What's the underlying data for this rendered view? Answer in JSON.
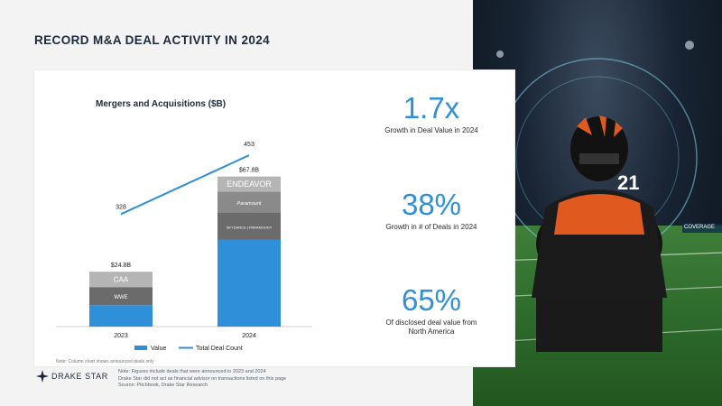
{
  "page": {
    "title": "RECORD M&A DEAL ACTIVITY IN 2024",
    "colors": {
      "accent": "#2f8fd8",
      "dark_bar": "#6b6b6b",
      "mid_bar": "#8a8a8a",
      "light_bar": "#b5b5b5",
      "title": "#1e2a3b"
    }
  },
  "chart_data": {
    "type": "bar",
    "title": "Mergers and Acquisitions ($B)",
    "categories": [
      "2023",
      "2024"
    ],
    "series": [
      {
        "name": "Value",
        "type": "bar",
        "values": [
          24.8,
          67.8
        ],
        "value_labels": [
          "$24.8B",
          "$67.8B"
        ]
      },
      {
        "name": "Total Deal Count",
        "type": "line",
        "values": [
          328,
          453
        ],
        "value_labels": [
          "328",
          "453"
        ]
      }
    ],
    "stack_labels": [
      [
        "CAA",
        "WWE"
      ],
      [
        "ENDEAVOR",
        "Paramount",
        "SKYDANCE | PARAMOUNT"
      ]
    ],
    "legend": [
      "Value",
      "Total Deal Count"
    ],
    "legend_position": "bottom",
    "ylim": [
      0,
      75
    ]
  },
  "stats": [
    {
      "value": "1.7x",
      "label": "Growth in Deal Value in 2024"
    },
    {
      "value": "38%",
      "label": "Growth in # of Deals in 2024"
    },
    {
      "value": "65%",
      "label_line1": "Of disclosed deal value from",
      "label_line2": "North America"
    }
  ],
  "footnote": "Note: Column chart shows announced deals only",
  "notes": [
    "Note: Figures include deals that were announced in 2023 and 2024",
    "Drake Star did not act as financial advisor on transactions listed on this page",
    "Source: Pitchbook, Drake Star Research"
  ],
  "logo": {
    "text": "DRAKE STAR",
    "icon": "star-icon"
  },
  "photo": {
    "jersey_number": "21",
    "banner": "COVERAGE"
  }
}
